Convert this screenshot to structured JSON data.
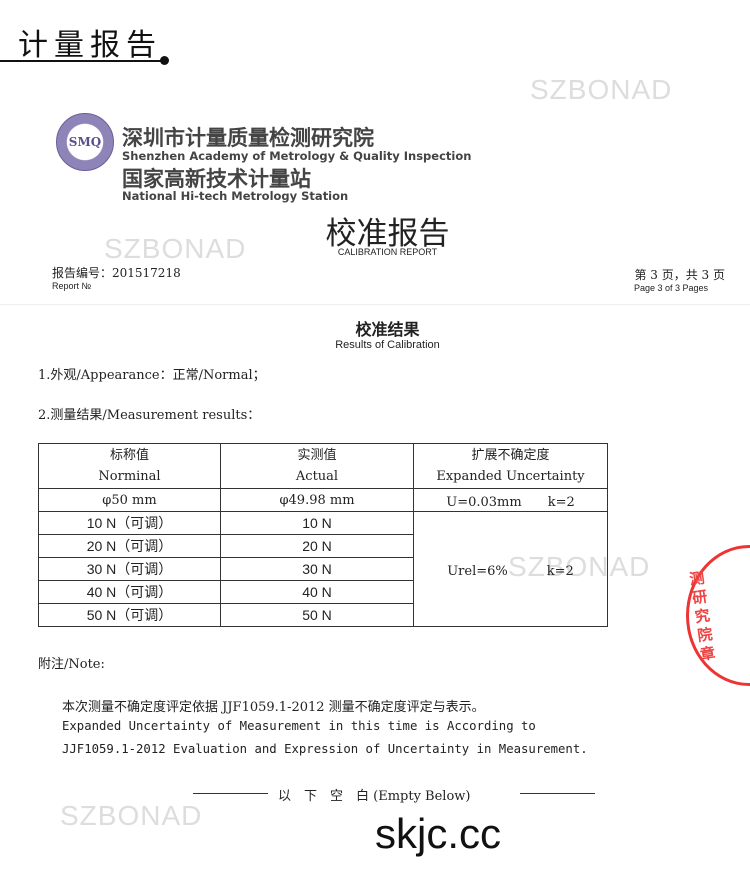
{
  "header": {
    "title": "计量报告"
  },
  "org": {
    "logo": "SMQ",
    "name_cn": "深圳市计量质量检测研究院",
    "name_en": "Shenzhen Academy of Metrology & Quality Inspection",
    "station_cn": "国家高新技术计量站",
    "station_en": "National Hi-tech Metrology Station"
  },
  "watermark": "SZBONAD",
  "report": {
    "title_cn": "校准报告",
    "title_en": "CALIBRATION REPORT",
    "no_label": "报告编号：201517218",
    "no_en": "Report №",
    "page_cn": "第 3 页，共 3 页",
    "page_en": "Page 3 of 3 Pages"
  },
  "results": {
    "title_cn": "校准结果",
    "title_en": "Results of Calibration",
    "item1": "1.外观/Appearance：正常/Normal；",
    "item2": "2.测量结果/Measurement results："
  },
  "table": {
    "headers": [
      [
        "标称值",
        "Norminal"
      ],
      [
        "实测值",
        "Actual"
      ],
      [
        "扩展不确定度",
        "Expanded Uncertainty"
      ]
    ],
    "dim_row": [
      "φ50 mm",
      "φ49.98 mm",
      "U=0.03mm　　k=2"
    ],
    "force_rows": [
      [
        "10 N（可调）",
        "10 N"
      ],
      [
        "20 N（可调）",
        "20 N"
      ],
      [
        "30 N（可调）",
        "30 N"
      ],
      [
        "40 N（可调）",
        "40 N"
      ],
      [
        "50 N（可调）",
        "50 N"
      ]
    ],
    "force_uncertainty": "Urel=6%　　　k=2"
  },
  "note": {
    "label": "附注/Note:",
    "line1": "本次测量不确定度评定依据 JJF1059.1-2012 测量不确定度评定与表示。",
    "line2": "Expanded Uncertainty of Measurement in this time is  According to",
    "line3": "JJF1059.1-2012 Evaluation and Expression of Uncertainty in Measurement."
  },
  "empty_below": "以　下　空　白 (Empty Below)",
  "stamp": "测研究院章",
  "site": "skjc.cc"
}
